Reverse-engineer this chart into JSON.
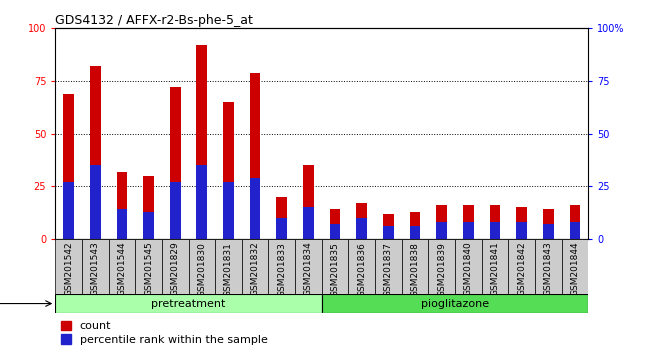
{
  "title": "GDS4132 / AFFX-r2-Bs-phe-5_at",
  "samples": [
    "GSM201542",
    "GSM201543",
    "GSM201544",
    "GSM201545",
    "GSM201829",
    "GSM201830",
    "GSM201831",
    "GSM201832",
    "GSM201833",
    "GSM201834",
    "GSM201835",
    "GSM201836",
    "GSM201837",
    "GSM201838",
    "GSM201839",
    "GSM201840",
    "GSM201841",
    "GSM201842",
    "GSM201843",
    "GSM201844"
  ],
  "count_values": [
    69,
    82,
    32,
    30,
    72,
    92,
    65,
    79,
    20,
    35,
    14,
    17,
    12,
    13,
    16,
    16,
    16,
    15,
    14,
    16
  ],
  "percentile_values": [
    27,
    35,
    14,
    13,
    27,
    35,
    27,
    29,
    10,
    15,
    7,
    10,
    6,
    6,
    8,
    8,
    8,
    8,
    7,
    8
  ],
  "n_pretreatment": 10,
  "n_pioglitazone": 10,
  "bar_color_red": "#cc0000",
  "bar_color_blue": "#2222cc",
  "pretreatment_color": "#aaffaa",
  "pioglitazone_color": "#55dd55",
  "yticks": [
    0,
    25,
    50,
    75,
    100
  ],
  "bar_width": 0.4,
  "legend_count_label": "count",
  "legend_percentile_label": "percentile rank within the sample",
  "title_fontsize": 9,
  "tick_fontsize": 7,
  "bar_label_fontsize": 7,
  "agent_fontsize": 8,
  "legend_fontsize": 8
}
